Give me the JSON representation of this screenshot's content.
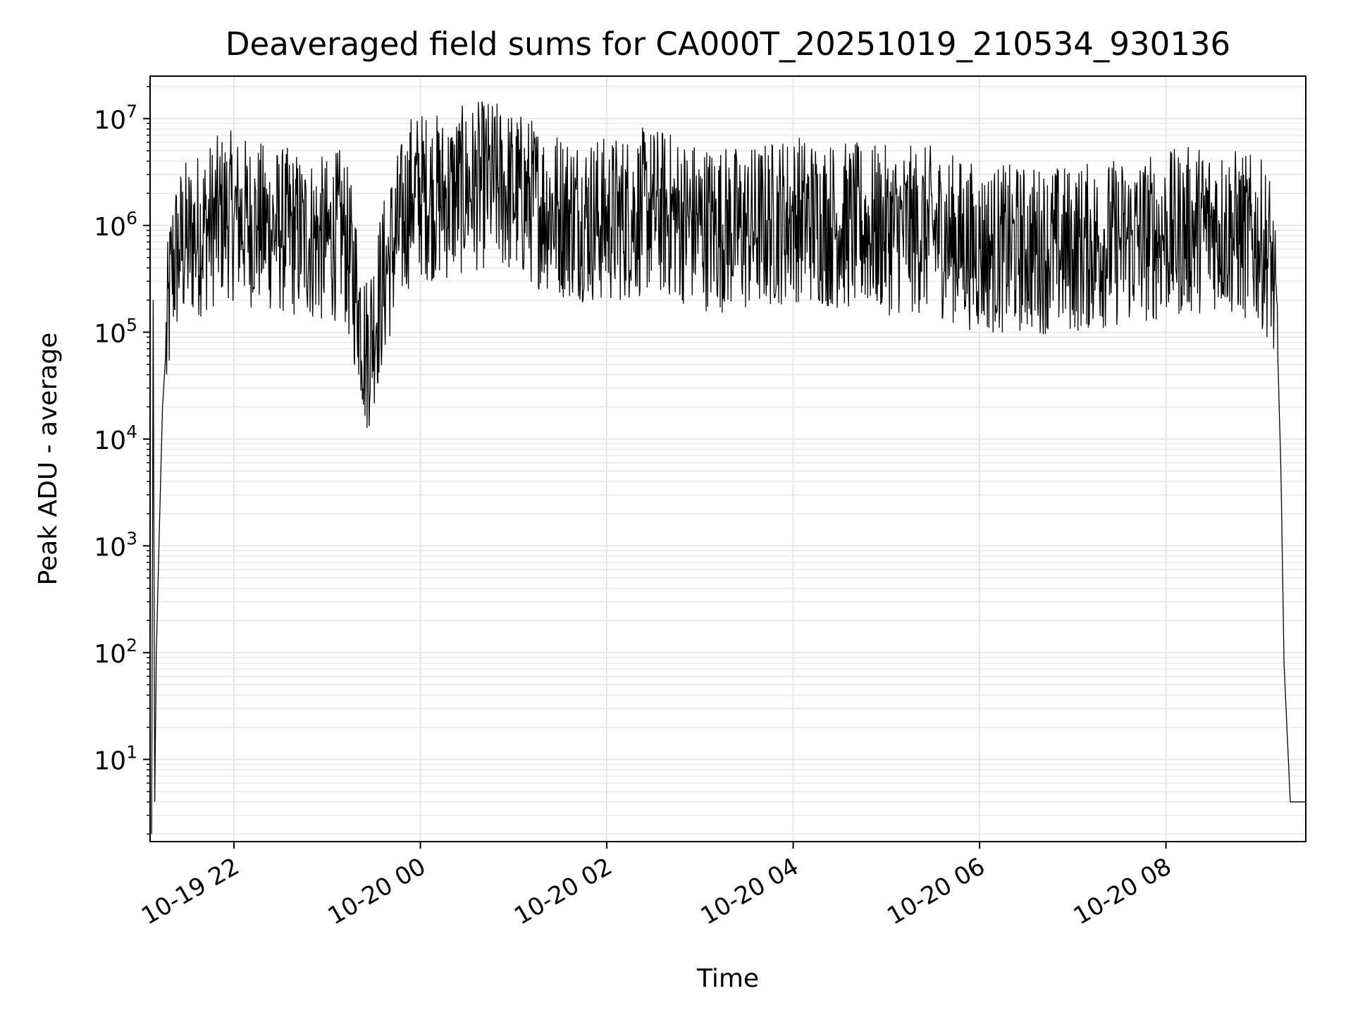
{
  "chart_data": {
    "type": "line",
    "title": "Deaveraged field sums for CA000T_20251019_210534_930136",
    "xlabel": "Time",
    "ylabel": "Peak ADU - average",
    "yscale": "log",
    "grid": true,
    "line_color": "#000000",
    "grid_color": "#e6e6e6",
    "xlim": [
      "2025-10-19 21:06",
      "2025-10-20 09:30"
    ],
    "ylim": [
      1.7,
      25000000
    ],
    "x_ticks": [
      {
        "label": "10-19 22",
        "value": "2025-10-19 22:00"
      },
      {
        "label": "10-20 00",
        "value": "2025-10-20 00:00"
      },
      {
        "label": "10-20 02",
        "value": "2025-10-20 02:00"
      },
      {
        "label": "10-20 04",
        "value": "2025-10-20 04:00"
      },
      {
        "label": "10-20 06",
        "value": "2025-10-20 06:00"
      },
      {
        "label": "10-20 08",
        "value": "2025-10-20 08:00"
      }
    ],
    "y_ticks": [
      {
        "base": "10",
        "exp": "1",
        "value": 10
      },
      {
        "base": "10",
        "exp": "2",
        "value": 100
      },
      {
        "base": "10",
        "exp": "3",
        "value": 1000
      },
      {
        "base": "10",
        "exp": "4",
        "value": 10000
      },
      {
        "base": "10",
        "exp": "5",
        "value": 100000
      },
      {
        "base": "10",
        "exp": "6",
        "value": 1000000
      },
      {
        "base": "10",
        "exp": "7",
        "value": 10000000
      }
    ],
    "series": [
      {
        "x": [
          "2025-10-19 21:07",
          "2025-10-19 21:08",
          "2025-10-19 21:09",
          "2025-10-19 21:10",
          "2025-10-19 21:12",
          "2025-10-19 21:14",
          "2025-10-19 21:16",
          "2025-10-19 21:20",
          "2025-10-19 21:25",
          "2025-10-19 21:30",
          "2025-10-19 21:35",
          "2025-10-19 21:45",
          "2025-10-19 21:55",
          "2025-10-19 22:00",
          "2025-10-19 22:15",
          "2025-10-19 22:30",
          "2025-10-19 22:45",
          "2025-10-19 23:00",
          "2025-10-19 23:10",
          "2025-10-19 23:20",
          "2025-10-19 23:25",
          "2025-10-19 23:40",
          "2025-10-19 23:55",
          "2025-10-20 00:15",
          "2025-10-20 00:30",
          "2025-10-20 00:45",
          "2025-10-20 01:00",
          "2025-10-20 01:30",
          "2025-10-20 02:00",
          "2025-10-20 02:30",
          "2025-10-20 03:00",
          "2025-10-20 03:30",
          "2025-10-20 04:00",
          "2025-10-20 04:30",
          "2025-10-20 05:00",
          "2025-10-20 05:30",
          "2025-10-20 06:00",
          "2025-10-20 06:30",
          "2025-10-20 07:00",
          "2025-10-20 07:30",
          "2025-10-20 08:00",
          "2025-10-20 08:30",
          "2025-10-20 09:00",
          "2025-10-20 09:08",
          "2025-10-20 09:12",
          "2025-10-20 09:14",
          "2025-10-20 09:16",
          "2025-10-20 09:20",
          "2025-10-20 09:30"
        ],
        "y": [
          2,
          200000,
          4,
          100,
          1500,
          20000,
          60000,
          400000,
          600000,
          700000,
          800000,
          1000000,
          1300000,
          1200000,
          1000000,
          900000,
          800000,
          700000,
          900000,
          200000,
          60000,
          500000,
          2000000,
          1800000,
          2200000,
          2500000,
          2000000,
          1300000,
          1100000,
          1400000,
          1000000,
          900000,
          1200000,
          1000000,
          900000,
          900000,
          600000,
          600000,
          600000,
          700000,
          800000,
          1000000,
          700000,
          500000,
          60000,
          5000,
          80,
          4,
          4
        ]
      }
    ]
  }
}
